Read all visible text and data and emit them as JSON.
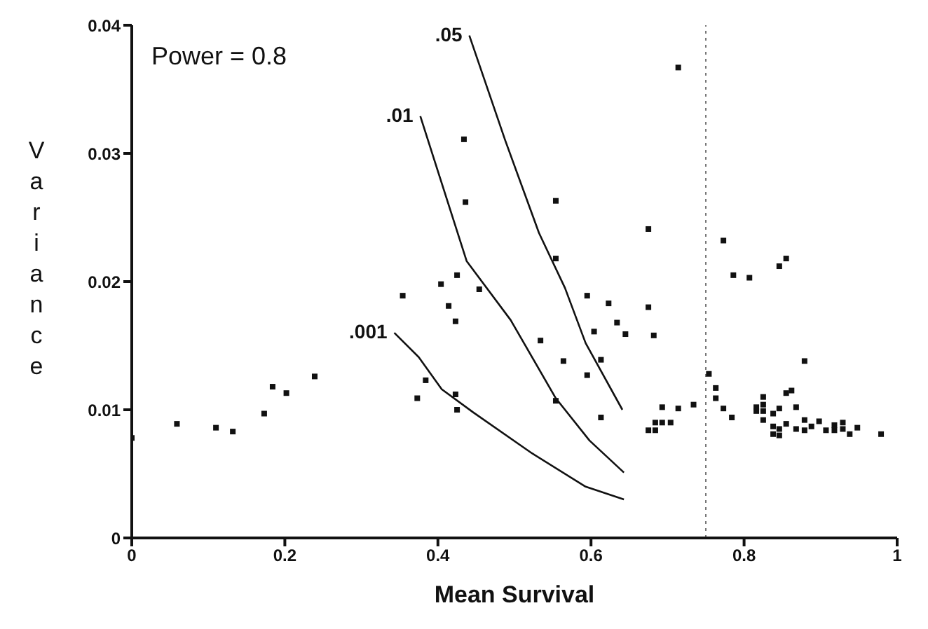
{
  "chart_data": {
    "type": "scatter",
    "xlabel": "Mean Survival",
    "ylabel": "Variance",
    "annotations": [
      "Power = 0.8"
    ],
    "xlim": [
      0,
      1
    ],
    "ylim": [
      0,
      0.04
    ],
    "xticks": [
      0,
      0.2,
      0.4,
      0.6,
      0.8,
      1
    ],
    "yticks": [
      0,
      0.01,
      0.02,
      0.03,
      0.04
    ],
    "grid": false,
    "legend": false,
    "marker": "square",
    "ref_lines": [
      {
        "axis": "x",
        "value": 0.75,
        "line_style": "dotted",
        "color": "#777777"
      }
    ],
    "series": [
      {
        "color": "#111111",
        "x": [
          0,
          0.059,
          0.11,
          0.132,
          0.173,
          0.184,
          0.202,
          0.239,
          0.354,
          0.373,
          0.384,
          0.404,
          0.414,
          0.425,
          0.423,
          0.423,
          0.425,
          0.454,
          0.434,
          0.436,
          0.554,
          0.554,
          0.534,
          0.564,
          0.554,
          0.595,
          0.604,
          0.595,
          0.613,
          0.613,
          0.623,
          0.634,
          0.645,
          0.675,
          0.675,
          0.682,
          0.714,
          0.675,
          0.684,
          0.684,
          0.693,
          0.704,
          0.693,
          0.714,
          0.734,
          0.754,
          0.763,
          0.763,
          0.773,
          0.786,
          0.807,
          0.846,
          0.855,
          0.773,
          0.784,
          0.816,
          0.816,
          0.825,
          0.825,
          0.825,
          0.825,
          0.838,
          0.838,
          0.838,
          0.846,
          0.846,
          0.846,
          0.855,
          0.862,
          0.879,
          0.868,
          0.855,
          0.868,
          0.879,
          0.879,
          0.888,
          0.898,
          0.907,
          0.918,
          0.918,
          0.929,
          0.929,
          0.938,
          0.948,
          0.979
        ],
        "values": [
          0.0078,
          0.0089,
          0.0086,
          0.0083,
          0.0097,
          0.0118,
          0.0113,
          0.0126,
          0.0189,
          0.0109,
          0.0123,
          0.0198,
          0.0181,
          0.0205,
          0.0169,
          0.0112,
          0.01,
          0.0194,
          0.0311,
          0.0262,
          0.0263,
          0.0218,
          0.0154,
          0.0138,
          0.0107,
          0.0189,
          0.0161,
          0.0127,
          0.0139,
          0.0094,
          0.0183,
          0.0168,
          0.0159,
          0.0241,
          0.018,
          0.0158,
          0.0367,
          0.0084,
          0.0084,
          0.009,
          0.009,
          0.009,
          0.0102,
          0.0101,
          0.0104,
          0.0128,
          0.0117,
          0.0109,
          0.0232,
          0.0205,
          0.0203,
          0.0212,
          0.0218,
          0.0101,
          0.0094,
          0.0102,
          0.0099,
          0.011,
          0.0104,
          0.0099,
          0.0092,
          0.0097,
          0.0087,
          0.0081,
          0.0101,
          0.0085,
          0.008,
          0.0113,
          0.0115,
          0.0138,
          0.0102,
          0.0089,
          0.0085,
          0.0092,
          0.0084,
          0.0087,
          0.0091,
          0.0084,
          0.0088,
          0.0084,
          0.009,
          0.0085,
          0.0081,
          0.0086,
          0.0081
        ]
      },
      {
        "type": "line",
        "name": ".05",
        "color": "#111111",
        "marker": "none",
        "x": [
          0.441,
          0.488,
          0.532,
          0.566,
          0.593,
          0.641
        ],
        "values": [
          0.0392,
          0.031,
          0.0238,
          0.0195,
          0.0152,
          0.01
        ]
      },
      {
        "type": "line",
        "name": ".01",
        "color": "#111111",
        "marker": "none",
        "x": [
          0.377,
          0.4375,
          0.495,
          0.554,
          0.598,
          0.643
        ],
        "values": [
          0.0329,
          0.0216,
          0.017,
          0.0109,
          0.0076,
          0.0051
        ]
      },
      {
        "type": "line",
        "name": ".001",
        "color": "#111111",
        "marker": "none",
        "x": [
          0.343,
          0.375,
          0.405,
          0.446,
          0.523,
          0.593,
          0.643
        ],
        "values": [
          0.016,
          0.0141,
          0.0116,
          0.0098,
          0.0066,
          0.004,
          0.003
        ]
      }
    ]
  }
}
